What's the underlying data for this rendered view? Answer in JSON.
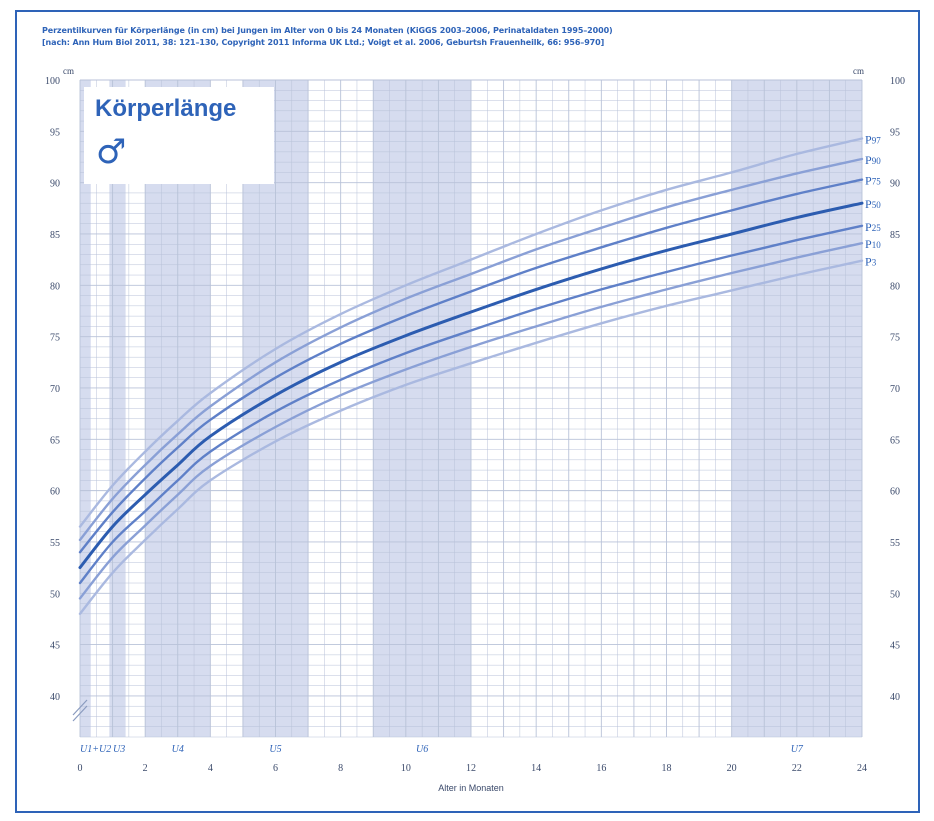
{
  "chart_data": {
    "type": "line",
    "title_lines": [
      "Perzentilkurven für Körperlänge (in cm) bei Jungen im Alter von 0 bis 24 Monaten (KiGGS 2003–2006, Perinataldaten 1995–2000)",
      "[nach: Ann Hum Biol 2011, 38: 121–130, Copyright 2011 Informa UK Ltd.; Voigt et al. 2006, Geburtsh Frauenheilk, 66: 956–970]"
    ],
    "panel_title": "Körperlänge",
    "panel_symbol": "♂",
    "xlabel": "Alter in Monaten",
    "ylabel_unit": "cm",
    "xlim": [
      0,
      24
    ],
    "ylim": [
      36,
      100
    ],
    "x_ticks": [
      0,
      2,
      4,
      6,
      8,
      10,
      12,
      14,
      16,
      18,
      20,
      22,
      24
    ],
    "y_ticks": [
      40,
      45,
      50,
      55,
      60,
      65,
      70,
      75,
      80,
      85,
      90,
      95,
      100
    ],
    "exams": [
      {
        "label": "U1+U2",
        "x": 0,
        "band": [
          0,
          0.33
        ]
      },
      {
        "label": "U3",
        "x": 1.2,
        "band": [
          0.9,
          1.4
        ]
      },
      {
        "label": "U4",
        "x": 3,
        "band": [
          2,
          4
        ]
      },
      {
        "label": "U5",
        "x": 6,
        "band": [
          5,
          7
        ]
      },
      {
        "label": "U6",
        "x": 10.5,
        "band": [
          9,
          12
        ]
      },
      {
        "label": "U7",
        "x": 22,
        "band": [
          20,
          24
        ]
      }
    ],
    "colors": {
      "accent": "#2e63b8",
      "band": "#d6dcef",
      "grid": "#b8c2d8",
      "p3": "#aab9e0",
      "p10": "#8aa0d6",
      "p25": "#5f80c8",
      "p50": "#2c5cb0",
      "p75": "#5f80c8",
      "p90": "#8aa0d6",
      "p97": "#aab9e0"
    },
    "x": [
      0,
      1,
      2,
      3,
      4,
      6,
      8,
      10,
      12,
      14,
      16,
      18,
      20,
      22,
      24
    ],
    "series": [
      {
        "name": "P97",
        "key": "p97",
        "values": [
          56.5,
          60.5,
          63.8,
          66.8,
          69.5,
          73.8,
          77.2,
          80.0,
          82.5,
          85.0,
          87.3,
          89.3,
          91.0,
          92.8,
          94.3
        ]
      },
      {
        "name": "P90",
        "key": "p90",
        "values": [
          55.2,
          59.2,
          62.5,
          65.5,
          68.2,
          72.5,
          75.9,
          78.7,
          81.1,
          83.5,
          85.6,
          87.6,
          89.3,
          90.9,
          92.3
        ]
      },
      {
        "name": "P75",
        "key": "p75",
        "values": [
          54.0,
          57.9,
          61.2,
          64.2,
          66.9,
          71.0,
          74.3,
          77.0,
          79.4,
          81.7,
          83.7,
          85.6,
          87.3,
          88.9,
          90.3
        ]
      },
      {
        "name": "P50",
        "key": "p50",
        "values": [
          52.5,
          56.5,
          59.6,
          62.5,
          65.3,
          69.3,
          72.5,
          75.1,
          77.4,
          79.6,
          81.6,
          83.4,
          85.0,
          86.6,
          88.0
        ]
      },
      {
        "name": "P25",
        "key": "p25",
        "values": [
          51.0,
          55.0,
          58.0,
          61.0,
          63.8,
          67.7,
          70.8,
          73.4,
          75.6,
          77.7,
          79.6,
          81.3,
          82.9,
          84.4,
          85.8
        ]
      },
      {
        "name": "P10",
        "key": "p10",
        "values": [
          49.5,
          53.5,
          56.6,
          59.6,
          62.4,
          66.2,
          69.3,
          71.8,
          74.0,
          76.0,
          77.9,
          79.6,
          81.2,
          82.7,
          84.1
        ]
      },
      {
        "name": "P3",
        "key": "p3",
        "values": [
          48.0,
          52.0,
          55.2,
          58.2,
          61.0,
          64.8,
          67.8,
          70.3,
          72.4,
          74.4,
          76.3,
          78.0,
          79.5,
          81.0,
          82.4
        ]
      }
    ]
  }
}
